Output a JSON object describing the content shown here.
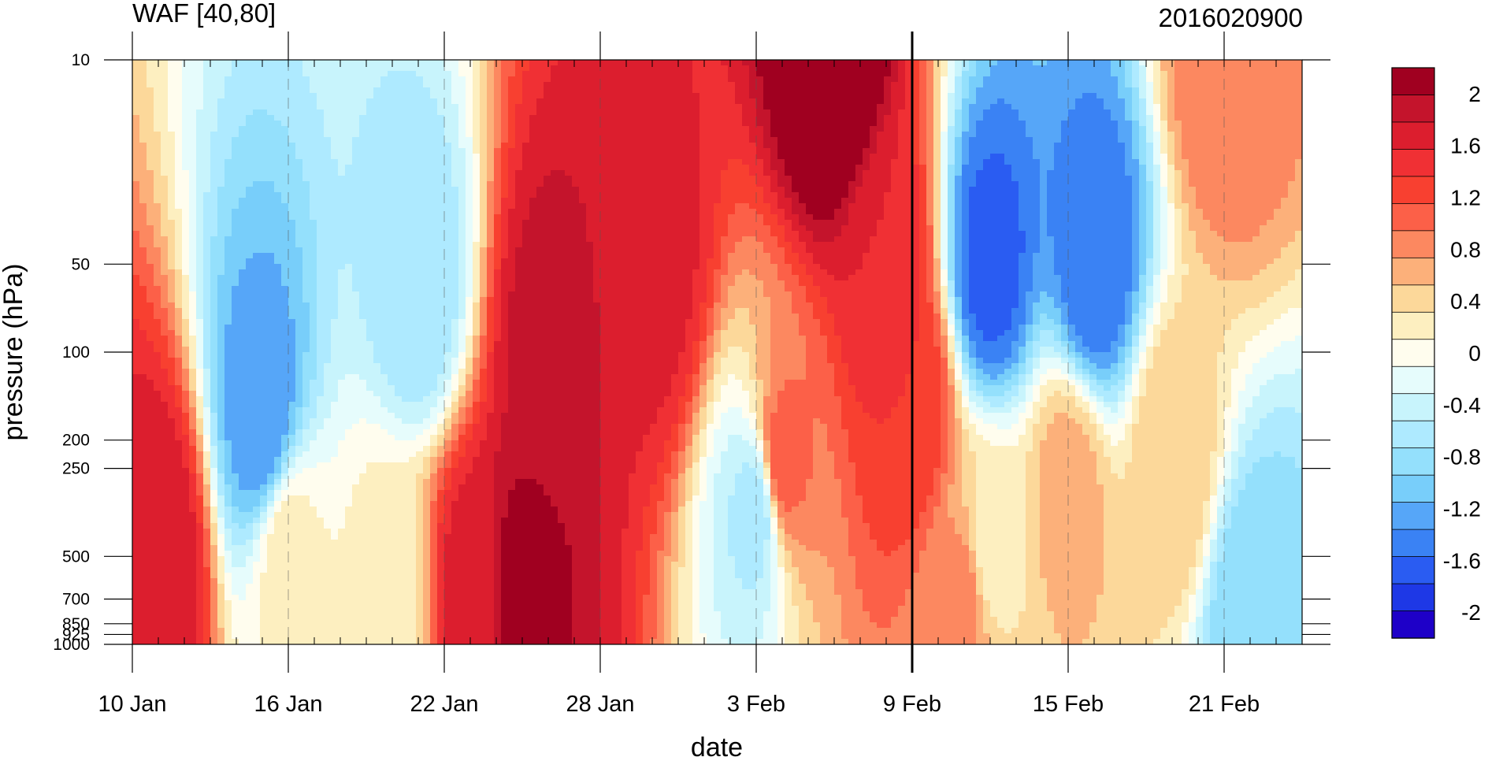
{
  "chart_data": {
    "type": "heatmap",
    "title": "WAF [40,80]",
    "subtitle": "2016020900",
    "xlabel": "date",
    "ylabel": "pressure (hPa)",
    "x_range": [
      "2016-01-10",
      "2016-02-24"
    ],
    "x_tick_labels": [
      "10 Jan",
      "16 Jan",
      "22 Jan",
      "28 Jan",
      "3 Feb",
      "9 Feb",
      "15 Feb",
      "21 Feb"
    ],
    "x_ticks": [
      "2016-01-10",
      "2016-01-16",
      "2016-01-22",
      "2016-01-28",
      "2016-02-03",
      "2016-02-09",
      "2016-02-15",
      "2016-02-21"
    ],
    "y_scale": "log",
    "y_reversed": true,
    "ylim": [
      1000,
      10
    ],
    "y_ticks": [
      10,
      50,
      100,
      200,
      250,
      500,
      700,
      850,
      925,
      1000
    ],
    "y_tick_labels": [
      "10",
      "50",
      "100",
      "200",
      "250",
      "500",
      "700",
      "850",
      "925",
      "1000"
    ],
    "reference_line_date": "2016-02-09",
    "colorbar": {
      "levels": [
        -2.2,
        -2.0,
        -1.8,
        -1.6,
        -1.4,
        -1.2,
        -1.0,
        -0.8,
        -0.6,
        -0.4,
        -0.2,
        0.0,
        0.2,
        0.4,
        0.6,
        0.8,
        1.0,
        1.2,
        1.4,
        1.6,
        1.8,
        2.0,
        2.2
      ],
      "colors": [
        "#1e00c8",
        "#1e38e6",
        "#2a5cf2",
        "#3a82f4",
        "#56a6f8",
        "#78cefa",
        "#94e0fc",
        "#aeeaff",
        "#c8f4fc",
        "#e6fcfc",
        "#fffdee",
        "#fdefc0",
        "#fcd89a",
        "#fcb07a",
        "#fc8860",
        "#fc6048",
        "#f84030",
        "#f03034",
        "#dc1e2e",
        "#c4142c",
        "#a00020"
      ],
      "tick_labels": [
        "2",
        "1.6",
        "1.2",
        "0.8",
        "0.4",
        "0",
        "-0.4",
        "-0.8",
        "-1.2",
        "-1.6",
        "-2"
      ],
      "tick_values": [
        2.0,
        1.6,
        1.2,
        0.8,
        0.4,
        0.0,
        -0.4,
        -0.8,
        -1.2,
        -1.6,
        -2.0
      ]
    },
    "features": [
      {
        "date": "2016-01-11",
        "pressure": 500,
        "value": 1.6
      },
      {
        "date": "2016-01-15",
        "pressure": 170,
        "value": -1.4
      },
      {
        "date": "2016-01-16",
        "pressure": 500,
        "value": 0.1
      },
      {
        "date": "2016-01-20",
        "pressure": 700,
        "value": 0.1
      },
      {
        "date": "2016-01-21",
        "pressure": 60,
        "value": -0.8
      },
      {
        "date": "2016-01-23",
        "pressure": 650,
        "value": 1.5
      },
      {
        "date": "2016-01-25",
        "pressure": 650,
        "value": 1.9
      },
      {
        "date": "2016-01-26",
        "pressure": 100,
        "value": 1.7
      },
      {
        "date": "2016-01-30",
        "pressure": 50,
        "value": 1.5
      },
      {
        "date": "2016-02-03",
        "pressure": 350,
        "value": -0.7
      },
      {
        "date": "2016-02-04",
        "pressure": 240,
        "value": 0.9
      },
      {
        "date": "2016-02-06",
        "pressure": 10,
        "value": 2.3
      },
      {
        "date": "2016-02-08",
        "pressure": 50,
        "value": 1.4
      },
      {
        "date": "2016-02-09",
        "pressure": 150,
        "value": 1.2
      },
      {
        "date": "2016-02-11",
        "pressure": 700,
        "value": 0.7
      },
      {
        "date": "2016-02-12",
        "pressure": 50,
        "value": -1.7
      },
      {
        "date": "2016-02-12",
        "pressure": 500,
        "value": 0.1
      },
      {
        "date": "2016-02-15",
        "pressure": 300,
        "value": 0.5
      },
      {
        "date": "2016-02-16",
        "pressure": 50,
        "value": -1.6
      },
      {
        "date": "2016-02-19",
        "pressure": 240,
        "value": 0.4
      },
      {
        "date": "2016-02-21",
        "pressure": 10,
        "value": 0.8
      },
      {
        "date": "2016-02-22",
        "pressure": 850,
        "value": -1.0
      }
    ]
  }
}
